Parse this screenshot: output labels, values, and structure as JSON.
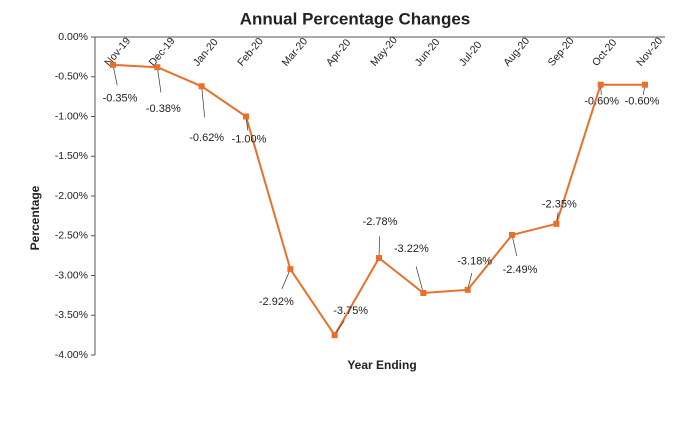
{
  "chart_data": {
    "type": "line",
    "title": "Annual Percentage Changes",
    "x_label": "Year Ending",
    "y_label": "Percentage",
    "categories": [
      "Nov-19",
      "Dec-19",
      "Jan-20",
      "Feb-20",
      "Mar-20",
      "Apr-20",
      "May-20",
      "Jun-20",
      "Jul-20",
      "Aug-20",
      "Sep-20",
      "Oct-20",
      "Nov-20"
    ],
    "series": [
      {
        "name": "Annual Percentage Changes",
        "color": "#e8702a",
        "values": [
          -0.35,
          -0.38,
          -0.62,
          -1.0,
          -2.92,
          -3.75,
          -2.78,
          -3.22,
          -3.18,
          -2.49,
          -2.35,
          -0.6,
          -0.6
        ],
        "value_labels": [
          "-0.35%",
          "-0.38%",
          "-0.62%",
          "-1.00%",
          "-2.92%",
          "-3.75%",
          "-2.78%",
          "-3.22%",
          "-3.18%",
          "-2.49%",
          "-2.35%",
          "-0.60%",
          "-0.60%"
        ]
      }
    ],
    "ylim": [
      -4,
      0
    ],
    "yticks": [
      {
        "value": 0,
        "label": "0.00%"
      },
      {
        "value": -0.5,
        "label": "-0.50%"
      },
      {
        "value": -1,
        "label": "-1.00%"
      },
      {
        "value": -1.5,
        "label": "-1.50%"
      },
      {
        "value": -2,
        "label": "-2.00%"
      },
      {
        "value": -2.5,
        "label": "-2.50%"
      },
      {
        "value": -3,
        "label": "-3.00%"
      },
      {
        "value": -3.5,
        "label": "-3.50%"
      },
      {
        "value": -4,
        "label": "-4.00%"
      }
    ]
  }
}
